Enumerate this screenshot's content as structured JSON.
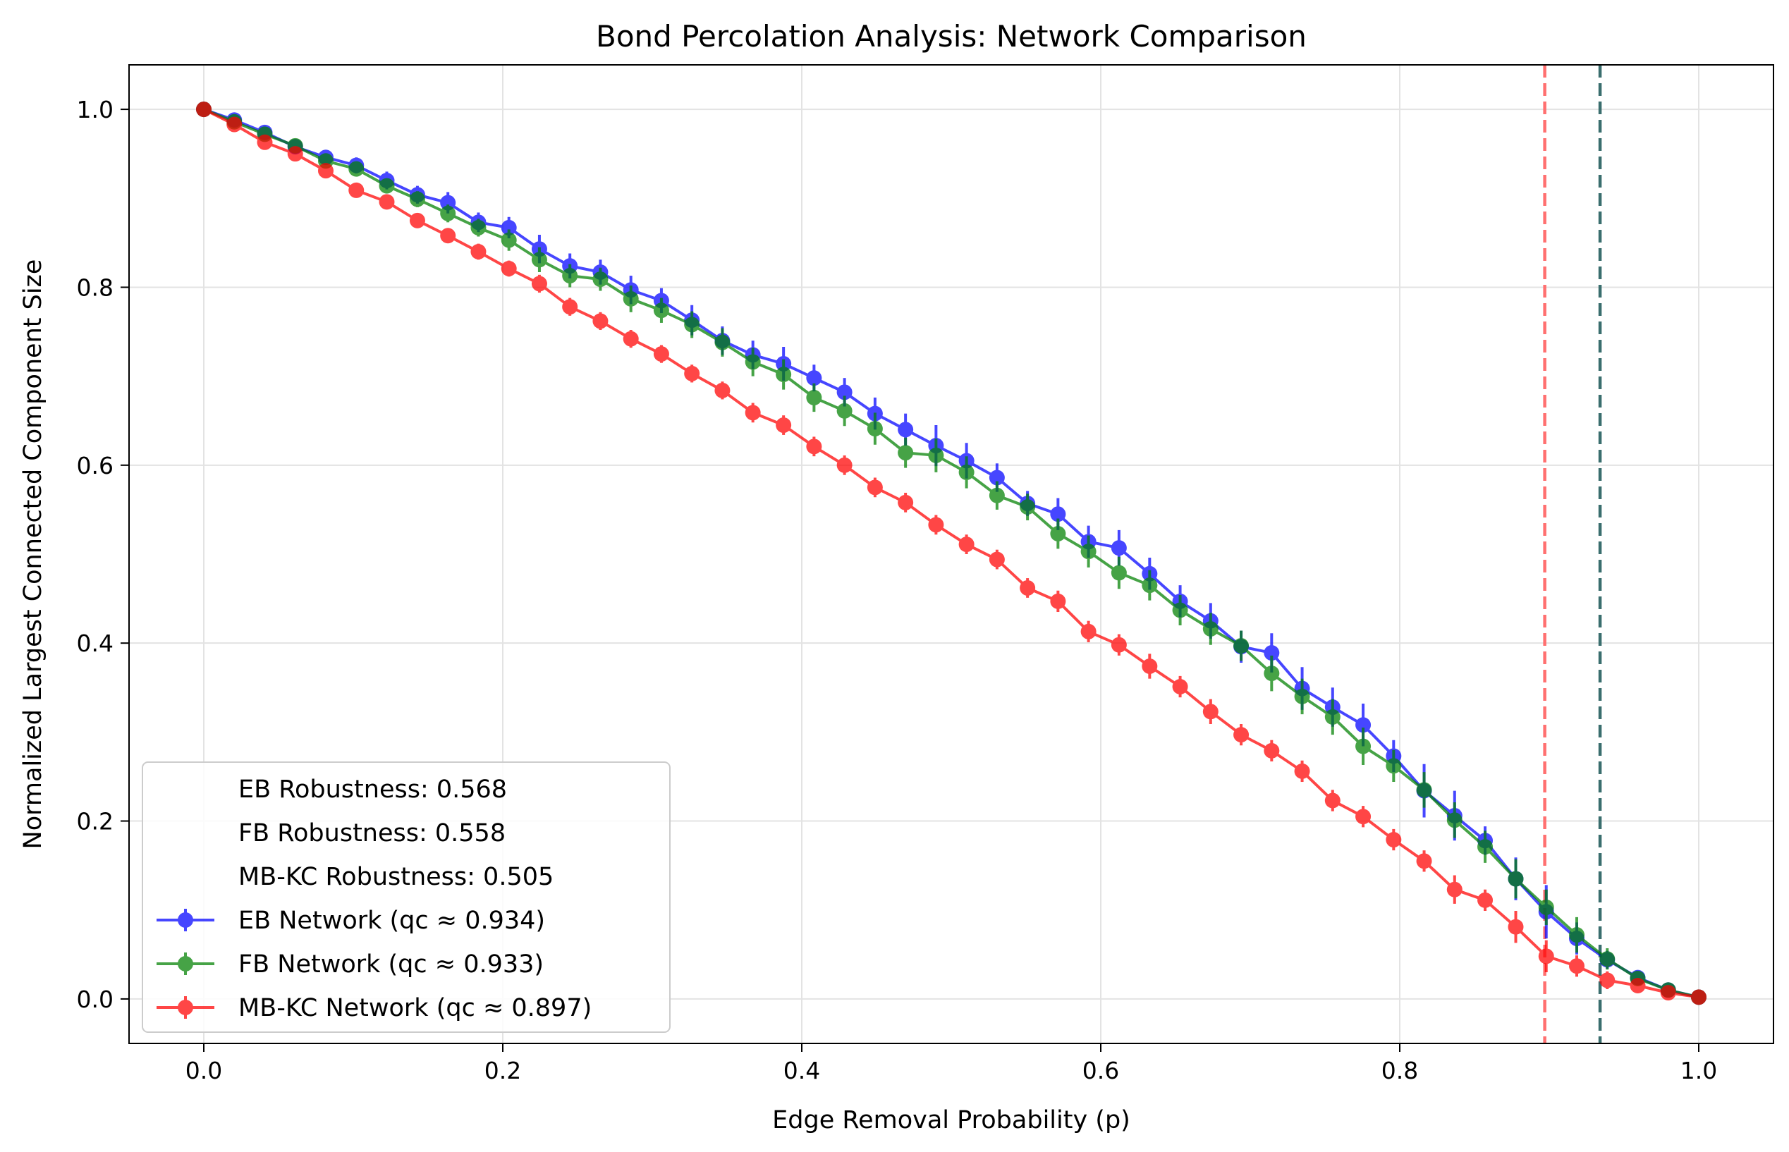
{
  "chart_data": {
    "type": "line",
    "title": "Bond Percolation Analysis: Network Comparison",
    "xlabel": "Edge Removal Probability (p)",
    "ylabel": "Normalized Largest Connected Component Size",
    "xlim": [
      -0.05,
      1.05
    ],
    "ylim": [
      -0.05,
      1.05
    ],
    "xticks": [
      0.0,
      0.2,
      0.4,
      0.6,
      0.8,
      1.0
    ],
    "xtick_labels": [
      "0.0",
      "0.2",
      "0.4",
      "0.6",
      "0.8",
      "1.0"
    ],
    "yticks": [
      0.0,
      0.2,
      0.4,
      0.6,
      0.8,
      1.0
    ],
    "ytick_labels": [
      "0.0",
      "0.2",
      "0.4",
      "0.6",
      "0.8",
      "1.0"
    ],
    "grid": true,
    "legend_position": "lower-left",
    "legend_notes": [
      "EB Robustness: 0.568",
      "FB Robustness: 0.558",
      "MB-KC Robustness: 0.505"
    ],
    "x": [
      0.0,
      0.0204,
      0.0408,
      0.0612,
      0.0816,
      0.102,
      0.1224,
      0.1429,
      0.1633,
      0.1837,
      0.2041,
      0.2245,
      0.2449,
      0.2653,
      0.2857,
      0.3061,
      0.3265,
      0.3469,
      0.3673,
      0.3878,
      0.4082,
      0.4286,
      0.449,
      0.4694,
      0.4898,
      0.5102,
      0.5306,
      0.551,
      0.5714,
      0.5918,
      0.6122,
      0.6327,
      0.6531,
      0.6735,
      0.6939,
      0.7143,
      0.7347,
      0.7551,
      0.7755,
      0.7959,
      0.8163,
      0.8367,
      0.8571,
      0.8776,
      0.898,
      0.9184,
      0.9388,
      0.9592,
      0.9796,
      1.0
    ],
    "series": [
      {
        "name": "EB Network (qc ≈ 0.934)",
        "color": "#0000ff",
        "values": [
          1.0,
          0.988,
          0.974,
          0.958,
          0.946,
          0.937,
          0.92,
          0.904,
          0.895,
          0.873,
          0.867,
          0.843,
          0.824,
          0.817,
          0.797,
          0.785,
          0.763,
          0.74,
          0.724,
          0.714,
          0.698,
          0.682,
          0.658,
          0.64,
          0.622,
          0.605,
          0.586,
          0.557,
          0.545,
          0.514,
          0.507,
          0.478,
          0.447,
          0.425,
          0.396,
          0.389,
          0.349,
          0.328,
          0.308,
          0.273,
          0.234,
          0.206,
          0.178,
          0.135,
          0.098,
          0.068,
          0.044,
          0.024,
          0.01,
          0.002
        ],
        "errors": [
          0.0,
          0.006,
          0.006,
          0.007,
          0.008,
          0.009,
          0.01,
          0.01,
          0.012,
          0.011,
          0.012,
          0.016,
          0.014,
          0.014,
          0.016,
          0.014,
          0.017,
          0.016,
          0.016,
          0.019,
          0.015,
          0.016,
          0.018,
          0.018,
          0.023,
          0.02,
          0.016,
          0.014,
          0.018,
          0.018,
          0.02,
          0.018,
          0.018,
          0.02,
          0.018,
          0.022,
          0.024,
          0.022,
          0.024,
          0.018,
          0.03,
          0.028,
          0.016,
          0.024,
          0.03,
          0.018,
          0.01,
          0.006,
          0.004,
          0.0
        ]
      },
      {
        "name": "FB Network (qc ≈ 0.933)",
        "color": "#008000",
        "values": [
          1.0,
          0.986,
          0.972,
          0.959,
          0.942,
          0.933,
          0.914,
          0.899,
          0.883,
          0.867,
          0.853,
          0.831,
          0.813,
          0.809,
          0.787,
          0.774,
          0.758,
          0.738,
          0.716,
          0.702,
          0.676,
          0.661,
          0.641,
          0.614,
          0.611,
          0.592,
          0.566,
          0.553,
          0.523,
          0.503,
          0.479,
          0.465,
          0.437,
          0.416,
          0.397,
          0.366,
          0.34,
          0.317,
          0.284,
          0.262,
          0.235,
          0.201,
          0.171,
          0.135,
          0.103,
          0.072,
          0.045,
          0.023,
          0.01,
          0.002
        ],
        "errors": [
          0.0,
          0.005,
          0.005,
          0.006,
          0.007,
          0.008,
          0.008,
          0.009,
          0.01,
          0.01,
          0.012,
          0.014,
          0.013,
          0.013,
          0.015,
          0.014,
          0.015,
          0.016,
          0.016,
          0.017,
          0.016,
          0.017,
          0.018,
          0.017,
          0.019,
          0.018,
          0.016,
          0.015,
          0.017,
          0.018,
          0.018,
          0.017,
          0.017,
          0.018,
          0.017,
          0.02,
          0.02,
          0.02,
          0.021,
          0.018,
          0.02,
          0.02,
          0.018,
          0.022,
          0.02,
          0.02,
          0.012,
          0.006,
          0.004,
          0.0
        ]
      },
      {
        "name": "MB-KC Network (qc ≈ 0.897)",
        "color": "#ff0000",
        "values": [
          1.0,
          0.983,
          0.963,
          0.95,
          0.931,
          0.909,
          0.896,
          0.875,
          0.858,
          0.84,
          0.821,
          0.804,
          0.778,
          0.762,
          0.742,
          0.725,
          0.703,
          0.684,
          0.659,
          0.645,
          0.621,
          0.6,
          0.575,
          0.558,
          0.533,
          0.511,
          0.494,
          0.462,
          0.447,
          0.413,
          0.398,
          0.374,
          0.351,
          0.323,
          0.297,
          0.279,
          0.256,
          0.223,
          0.205,
          0.179,
          0.155,
          0.123,
          0.111,
          0.081,
          0.048,
          0.037,
          0.021,
          0.015,
          0.007,
          0.002
        ],
        "errors": [
          0.0,
          0.005,
          0.006,
          0.006,
          0.007,
          0.007,
          0.007,
          0.008,
          0.008,
          0.009,
          0.009,
          0.01,
          0.01,
          0.01,
          0.01,
          0.01,
          0.01,
          0.01,
          0.011,
          0.011,
          0.011,
          0.011,
          0.011,
          0.011,
          0.011,
          0.011,
          0.011,
          0.011,
          0.012,
          0.012,
          0.012,
          0.014,
          0.012,
          0.014,
          0.012,
          0.012,
          0.012,
          0.012,
          0.012,
          0.012,
          0.012,
          0.016,
          0.012,
          0.018,
          0.018,
          0.012,
          0.01,
          0.008,
          0.006,
          0.0
        ]
      }
    ],
    "reference_lines": [
      {
        "axis": "x",
        "value": 0.897,
        "color": "#ff7070",
        "style": "dashed"
      },
      {
        "axis": "x",
        "value": 0.934,
        "color": "#3a6e6e",
        "style": "dashed"
      }
    ]
  }
}
